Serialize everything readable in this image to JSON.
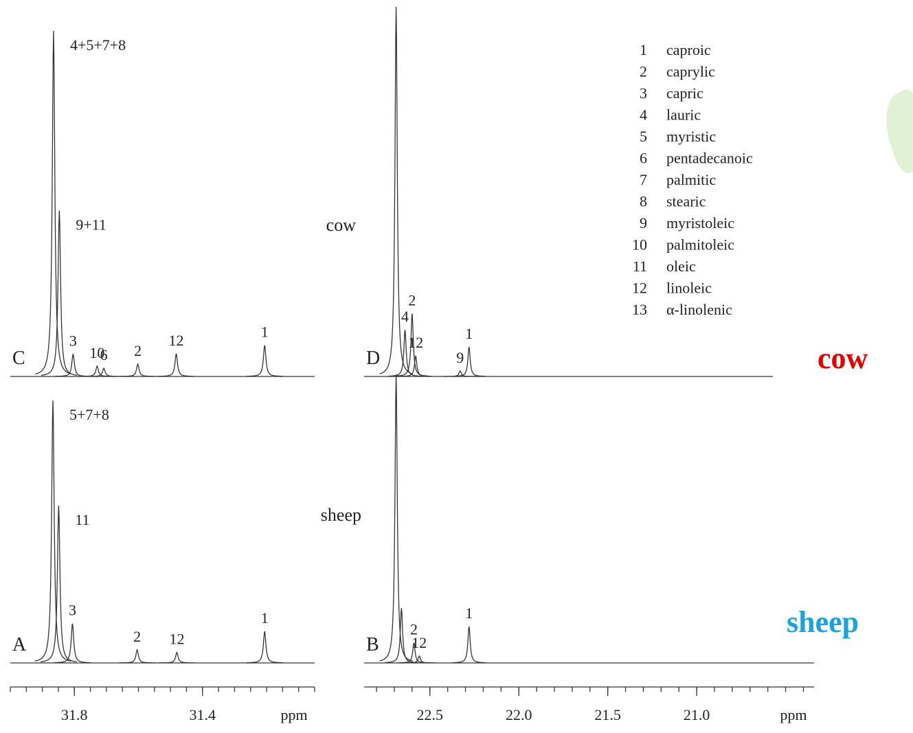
{
  "chart_data": [
    {
      "type": "spectrum",
      "xlim": [
        32.0,
        31.05
      ],
      "xlabel": "ppm",
      "xticks": [
        31.8,
        31.4
      ],
      "xminorticks": [
        32.0,
        31.95,
        31.9,
        31.85,
        31.8,
        31.75,
        31.7,
        31.65,
        31.6,
        31.55,
        31.5,
        31.45,
        31.4,
        31.35,
        31.3,
        31.25,
        31.2,
        31.15,
        31.1,
        31.05
      ],
      "ylim": [
        0,
        100
      ],
      "spectra": [
        {
          "label": "C",
          "peaks": [
            {
              "x": 31.865,
              "value": 100,
              "label": "4+5+7+8"
            },
            {
              "x": 31.847,
              "value": 48,
              "label": "9+11"
            },
            {
              "x": 31.804,
              "value": 6.5,
              "label": "3"
            },
            {
              "x": 31.729,
              "value": 3,
              "label": "10"
            },
            {
              "x": 31.708,
              "value": 2.4,
              "label": "6"
            },
            {
              "x": 31.602,
              "value": 3.6,
              "label": "2"
            },
            {
              "x": 31.482,
              "value": 6.6,
              "label": "12"
            },
            {
              "x": 31.206,
              "value": 9,
              "label": "1"
            }
          ]
        },
        {
          "label": "A",
          "peaks": [
            {
              "x": 31.867,
              "value": 100,
              "label": "5+7+8"
            },
            {
              "x": 31.849,
              "value": 60,
              "label": "11"
            },
            {
              "x": 31.806,
              "value": 15,
              "label": "3"
            },
            {
              "x": 31.604,
              "value": 5,
              "label": "2"
            },
            {
              "x": 31.48,
              "value": 4,
              "label": "12"
            },
            {
              "x": 31.206,
              "value": 12,
              "label": "1"
            }
          ]
        }
      ]
    },
    {
      "type": "spectrum",
      "xlim": [
        22.87,
        20.34
      ],
      "xlabel": "ppm",
      "xticks": [
        22.5,
        {
          "value": 22,
          "label": "22.0"
        },
        21.5,
        {
          "value": 21,
          "label": "21.0"
        }
      ],
      "xminorticks": [
        22.8,
        22.7,
        22.6,
        22.5,
        22.4,
        22.3,
        22.2,
        22.1,
        22.0,
        21.9,
        21.8,
        21.7,
        21.6,
        21.5,
        21.4,
        21.3,
        21.2,
        21.1,
        21.0,
        20.9,
        20.8,
        20.7,
        20.6,
        20.5,
        20.4
      ],
      "ylim": [
        0,
        100
      ],
      "spectra": [
        {
          "label": "D",
          "peaks": [
            {
              "x": 22.69,
              "value": 100
            },
            {
              "x": 22.64,
              "value": 12.6,
              "label": "4"
            },
            {
              "x": 22.6,
              "value": 17,
              "label": "2"
            },
            {
              "x": 22.58,
              "value": 5.6,
              "label": "12"
            },
            {
              "x": 22.33,
              "value": 1.5,
              "label": "9"
            },
            {
              "x": 22.28,
              "value": 8,
              "label": "1"
            }
          ]
        },
        {
          "label": "B",
          "peaks": [
            {
              "x": 22.69,
              "value": 100
            },
            {
              "x": 22.66,
              "value": 19
            },
            {
              "x": 22.59,
              "value": 7,
              "label": "2"
            },
            {
              "x": 22.56,
              "value": 2.4,
              "label": "12"
            },
            {
              "x": 22.28,
              "value": 12.6,
              "label": "1"
            }
          ]
        }
      ]
    }
  ],
  "legend": [
    {
      "number": "1",
      "name": "caproic"
    },
    {
      "number": "2",
      "name": "caprylic"
    },
    {
      "number": "3",
      "name": "capric"
    },
    {
      "number": "4",
      "name": "lauric"
    },
    {
      "number": "5",
      "name": "myristic"
    },
    {
      "number": "6",
      "name": "pentadecanoic"
    },
    {
      "number": "7",
      "name": "palmitic"
    },
    {
      "number": "8",
      "name": "stearic"
    },
    {
      "number": "9",
      "name": "myristoleic"
    },
    {
      "number": "10",
      "name": "palmitoleic"
    },
    {
      "number": "11",
      "name": "oleic"
    },
    {
      "number": "12",
      "name": "linoleic"
    },
    {
      "number": "13",
      "name": "α-linolenic"
    }
  ],
  "annotations": [
    "cow",
    "sheep"
  ],
  "species_labels": [
    {
      "text": "cow",
      "color": "#e00000"
    },
    {
      "text": "sheep",
      "color": "#1aa3dc"
    }
  ]
}
